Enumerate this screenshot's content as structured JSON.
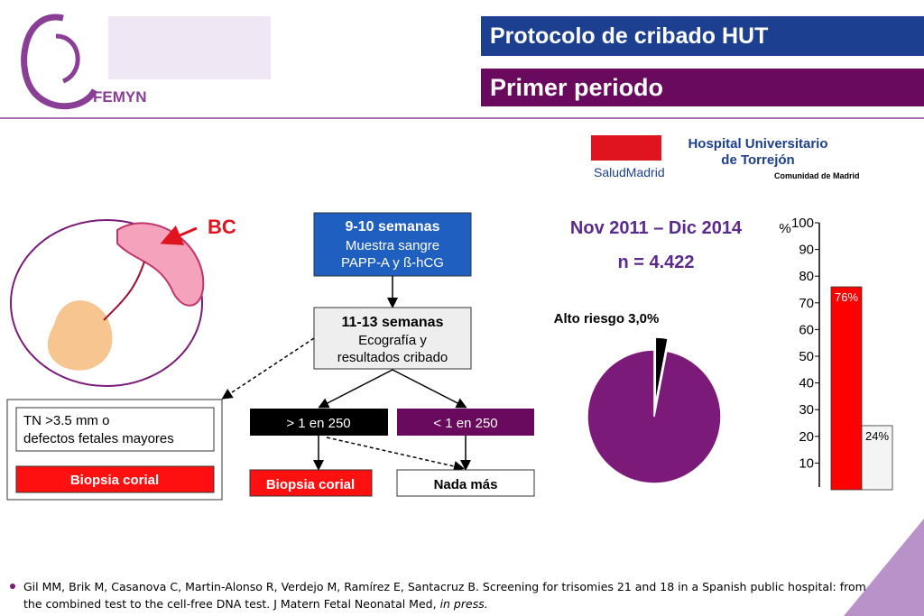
{
  "header": {
    "title": "Protocolo de cribado HUT",
    "subtitle": "Primer periodo",
    "logo_text": "FEMYN"
  },
  "hospital": {
    "brand": "SaludMadrid",
    "name_line1": "Hospital Universitario",
    "name_line2": "de Torrejón",
    "region": "Comunidad de Madrid"
  },
  "illustration": {
    "label": "BC"
  },
  "flow": {
    "step1": {
      "title": "9-10 semanas",
      "line1": "Muestra sangre",
      "line2": "PAPP-A y ß-hCG"
    },
    "step2": {
      "title": "11-13 semanas",
      "line1": "Ecografía y",
      "line2": "resultados cribado"
    },
    "high": "> 1 en 250",
    "low": "< 1 en 250",
    "high_result": "Biopsia corial",
    "low_result": "Nada más",
    "side_condition_line1": "TN >3.5 mm o",
    "side_condition_line2": "defectos fetales mayores",
    "side_result": "Biopsia corial"
  },
  "stats": {
    "period": "Nov 2011 – Dic 2014",
    "n": "n = 4.422"
  },
  "pie": {
    "type": "pie",
    "annotation": "Alto riesgo 3,0%",
    "values": [
      3.0,
      97.0
    ],
    "colors": [
      "#000000",
      "#7b1a78"
    ]
  },
  "bar": {
    "type": "bar",
    "ylabel": "%",
    "values": [
      76,
      24
    ],
    "value_labels": [
      "76%",
      "24%"
    ],
    "colors": [
      "#ff0000",
      "#f4f4f4"
    ],
    "ylim": [
      0,
      100
    ],
    "yticks": [
      10,
      20,
      30,
      40,
      50,
      60,
      70,
      80,
      90,
      100
    ]
  },
  "reference": {
    "main": "Gil MM, Brik M, Casanova C, Martin-Alonso R, Verdejo M, Ramírez E, Santacruz B. Screening for trisomies 21 and 18 in a Spanish public hospital: from",
    "line2": "the combined test to the cell-free DNA test. J Matern Fetal Neonatal Med,",
    "italic": "in press."
  }
}
